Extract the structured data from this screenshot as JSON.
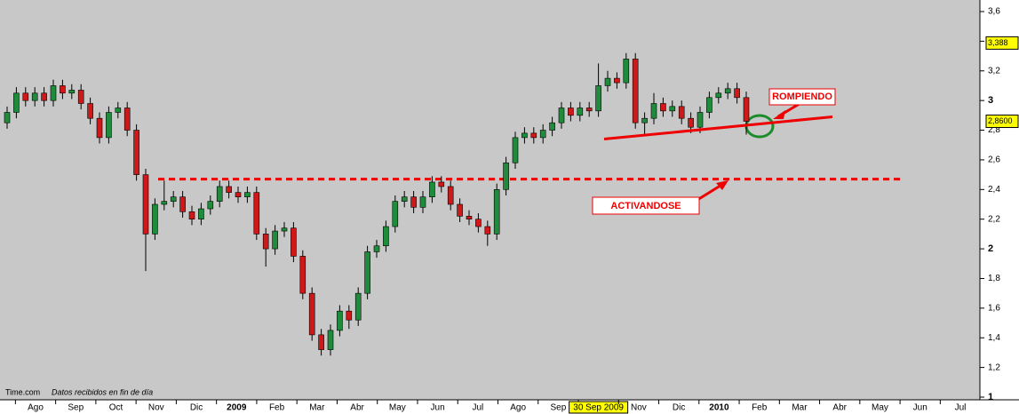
{
  "chart_data": {
    "type": "candlestick",
    "months": [
      "Ago",
      "Sep",
      "Oct",
      "Nov",
      "Dic",
      "2009",
      "Feb",
      "Mar",
      "Abr",
      "May",
      "Jun",
      "Jul",
      "Ago",
      "Sep",
      null,
      "Nov",
      "Dic",
      "2010",
      "Feb",
      "Mar",
      "Abr",
      "May",
      "Jun",
      "Jul"
    ],
    "cursor_label": "30 Sep 2009",
    "open": [
      2.85,
      2.92,
      3.05,
      3.0,
      3.05,
      3.0,
      3.1,
      3.05,
      3.07,
      2.98,
      2.88,
      2.75,
      2.92,
      2.95,
      2.8,
      2.5,
      2.1,
      2.3,
      2.32,
      2.35,
      2.25,
      2.2,
      2.27,
      2.32,
      2.42,
      2.38,
      2.35,
      2.38,
      2.1,
      2.0,
      2.12,
      2.14,
      1.95,
      1.7,
      1.42,
      1.32,
      1.45,
      1.58,
      1.52,
      1.7,
      1.98,
      2.02,
      2.15,
      2.32,
      2.35,
      2.28,
      2.35,
      2.45,
      2.42,
      2.3,
      2.22,
      2.2,
      2.15,
      2.1,
      2.4,
      2.58,
      2.75,
      2.78,
      2.75,
      2.8,
      2.85,
      2.95,
      2.9,
      2.95,
      2.93,
      3.1,
      3.15,
      3.12,
      3.28,
      2.85,
      2.88,
      2.98,
      2.93,
      2.96,
      2.88,
      2.82,
      2.92,
      3.02,
      3.05,
      3.08,
      3.02
    ],
    "high": [
      2.96,
      3.09,
      3.09,
      3.09,
      3.09,
      3.14,
      3.14,
      3.11,
      3.11,
      3.02,
      2.92,
      2.96,
      2.99,
      2.99,
      2.84,
      2.54,
      2.34,
      2.46,
      2.39,
      2.39,
      2.29,
      2.31,
      2.36,
      2.46,
      2.46,
      2.42,
      2.42,
      2.42,
      2.14,
      2.16,
      2.18,
      2.18,
      1.99,
      1.74,
      1.46,
      1.49,
      1.62,
      1.62,
      1.74,
      2.02,
      2.06,
      2.19,
      2.36,
      2.39,
      2.39,
      2.39,
      2.49,
      2.49,
      2.46,
      2.34,
      2.26,
      2.24,
      2.19,
      2.44,
      2.62,
      2.79,
      2.82,
      2.82,
      2.84,
      2.89,
      2.99,
      2.99,
      2.99,
      2.99,
      3.25,
      3.2,
      3.19,
      3.32,
      3.32,
      2.92,
      3.05,
      3.02,
      3.0,
      3.0,
      2.92,
      2.96,
      3.06,
      3.09,
      3.12,
      3.12,
      3.06
    ],
    "low": [
      2.81,
      2.88,
      2.96,
      2.96,
      2.96,
      2.96,
      3.01,
      3.01,
      2.94,
      2.84,
      2.71,
      2.71,
      2.88,
      2.76,
      2.46,
      1.85,
      2.06,
      2.26,
      2.28,
      2.21,
      2.16,
      2.16,
      2.23,
      2.28,
      2.34,
      2.31,
      2.31,
      2.06,
      1.88,
      1.96,
      2.08,
      1.91,
      1.66,
      1.38,
      1.28,
      1.28,
      1.41,
      1.46,
      1.48,
      1.66,
      1.94,
      1.98,
      2.11,
      2.28,
      2.24,
      2.24,
      2.31,
      2.38,
      2.26,
      2.18,
      2.16,
      2.11,
      2.02,
      2.06,
      2.36,
      2.54,
      2.71,
      2.71,
      2.71,
      2.76,
      2.81,
      2.86,
      2.86,
      2.89,
      2.89,
      3.06,
      3.08,
      3.08,
      2.81,
      2.76,
      2.84,
      2.89,
      2.89,
      2.84,
      2.78,
      2.78,
      2.88,
      2.98,
      3.01,
      2.98,
      2.77
    ],
    "close": [
      2.92,
      3.05,
      3.0,
      3.05,
      3.0,
      3.1,
      3.05,
      3.07,
      2.98,
      2.88,
      2.75,
      2.92,
      2.95,
      2.8,
      2.5,
      2.1,
      2.3,
      2.32,
      2.35,
      2.25,
      2.2,
      2.27,
      2.32,
      2.42,
      2.38,
      2.35,
      2.38,
      2.1,
      2.0,
      2.12,
      2.14,
      1.95,
      1.7,
      1.42,
      1.32,
      1.45,
      1.58,
      1.52,
      1.7,
      1.98,
      2.02,
      2.15,
      2.32,
      2.35,
      2.28,
      2.35,
      2.45,
      2.42,
      2.3,
      2.22,
      2.2,
      2.15,
      2.1,
      2.4,
      2.58,
      2.75,
      2.78,
      2.75,
      2.8,
      2.85,
      2.95,
      2.9,
      2.95,
      2.93,
      3.1,
      3.15,
      3.12,
      3.28,
      2.85,
      2.88,
      2.98,
      2.93,
      2.96,
      2.88,
      2.82,
      2.92,
      3.02,
      3.05,
      3.08,
      3.02,
      2.86
    ],
    "up_color": "#1e8c3a",
    "down_color": "#d01818",
    "ylim": [
      1,
      3.6
    ],
    "yticks": [
      1,
      {
        "value": 1.2,
        "label": "1,2"
      },
      {
        "value": 1.4,
        "label": "1,4"
      },
      {
        "value": 1.6,
        "label": "1,6"
      },
      {
        "value": 1.8,
        "label": "1,8"
      },
      2,
      {
        "value": 2.2,
        "label": "2,2"
      },
      {
        "value": 2.4,
        "label": "2,4"
      },
      {
        "value": 2.6,
        "label": "2,6"
      },
      {
        "value": 2.8,
        "label": "2,8"
      },
      3,
      {
        "value": 3.2,
        "label": "3,2"
      },
      {
        "value": 3.4,
        "label": "3,4"
      },
      {
        "value": 3.6,
        "label": "3,6"
      }
    ],
    "price_flags": [
      {
        "value": 3.388,
        "label": "3,388"
      },
      {
        "value": 2.86,
        "label": "2,8600"
      }
    ],
    "resistance_level": 2.47,
    "trend_line": [
      2.74,
      2.89
    ],
    "annotations": [
      "ROMPIENDO",
      "ACTIVANDOSE"
    ],
    "source": "Time.com",
    "source_note": "Datos recibidos en fin de día"
  }
}
